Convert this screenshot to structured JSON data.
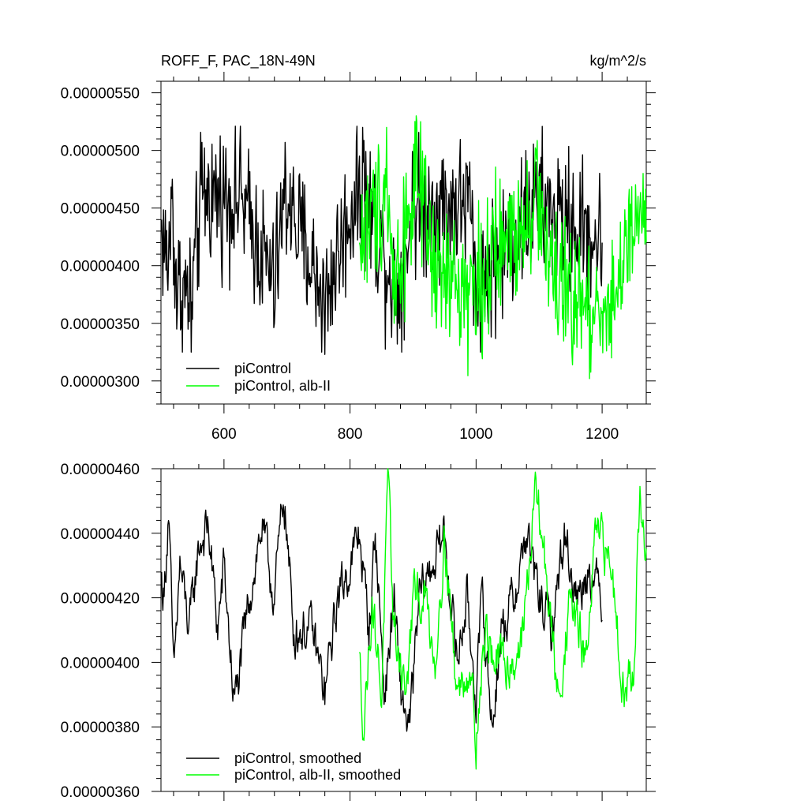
{
  "chart_data": [
    {
      "type": "line",
      "title": "ROFF_F, PAC_18N-49N",
      "units": "kg/m^2/s",
      "xlim": [
        500,
        1270
      ],
      "ylim": [
        2.8e-06,
        5.6e-06
      ],
      "xticks": [
        600,
        800,
        1000,
        1200
      ],
      "xtick_labels": [
        "600",
        "800",
        "1000",
        "1200"
      ],
      "yticks": [
        3e-06,
        3.5e-06,
        4e-06,
        4.5e-06,
        5e-06,
        5.5e-06
      ],
      "ytick_labels": [
        "0.00000300",
        "0.00000350",
        "0.00000400",
        "0.00000450",
        "0.00000500",
        "0.00000550"
      ],
      "legend_position": "bottom-left",
      "series": [
        {
          "name": "piControl",
          "color": "#000000",
          "x_start": 501,
          "x_end": 1200,
          "mean": 4.18e-06,
          "min": 3.25e-06,
          "max": 5.21e-06,
          "keypoints": [
            [
              501,
              4.4e-06
            ],
            [
              510,
              3.9e-06
            ],
            [
              518,
              4.75e-06
            ],
            [
              525,
              3.45e-06
            ],
            [
              548,
              3.25e-06
            ],
            [
              565,
              5.07e-06
            ],
            [
              625,
              5e-06
            ],
            [
              680,
              3.5e-06
            ],
            [
              697,
              5.07e-06
            ],
            [
              705,
              4.8e-06
            ],
            [
              760,
              3.23e-06
            ],
            [
              810,
              5.08e-06
            ],
            [
              820,
              5.2e-06
            ],
            [
              875,
              3.32e-06
            ],
            [
              900,
              4.8e-06
            ],
            [
              990,
              4.9e-06
            ],
            [
              1000,
              3.4e-06
            ],
            [
              1095,
              4.9e-06
            ],
            [
              1200,
              4.2e-06
            ]
          ]
        },
        {
          "name": "piControl, alb-II",
          "color": "#00ff00",
          "x_start": 815,
          "x_end": 1270,
          "mean": 4.2e-06,
          "min": 3.02e-06,
          "max": 5.3e-06,
          "keypoints": [
            [
              815,
              4.2e-06
            ],
            [
              858,
              5.2e-06
            ],
            [
              870,
              3.5e-06
            ],
            [
              905,
              5.3e-06
            ],
            [
              935,
              3.6e-06
            ],
            [
              1000,
              3.4e-06
            ],
            [
              1095,
              5e-06
            ],
            [
              1130,
              3.4e-06
            ],
            [
              1180,
              3.02e-06
            ],
            [
              1215,
              3.2e-06
            ],
            [
              1265,
              4.8e-06
            ],
            [
              1270,
              4.2e-06
            ]
          ]
        }
      ]
    },
    {
      "type": "line",
      "xlim": [
        500,
        1270
      ],
      "ylim": [
        3.6e-06,
        4.6e-06
      ],
      "xticks": [
        600,
        800,
        1000,
        1200
      ],
      "yticks": [
        3.6e-06,
        3.8e-06,
        4e-06,
        4.2e-06,
        4.4e-06,
        4.6e-06
      ],
      "ytick_labels": [
        "0.00000360",
        "0.00000380",
        "0.00000400",
        "0.00000420",
        "0.00000440",
        "0.00000460"
      ],
      "legend_position": "bottom-left",
      "series": [
        {
          "name": "piControl, smoothed",
          "color": "#000000",
          "x_start": 501,
          "x_end": 1200,
          "keypoints": [
            [
              501,
              4.25e-06
            ],
            [
              505,
              4.2e-06
            ],
            [
              512,
              4.48e-06
            ],
            [
              520,
              3.95e-06
            ],
            [
              530,
              4.3e-06
            ],
            [
              545,
              4.1e-06
            ],
            [
              560,
              4.36e-06
            ],
            [
              575,
              4.42e-06
            ],
            [
              590,
              4.1e-06
            ],
            [
              600,
              4.3e-06
            ],
            [
              615,
              3.9e-06
            ],
            [
              620,
              3.9e-06
            ],
            [
              640,
              4.2e-06
            ],
            [
              660,
              4.42e-06
            ],
            [
              680,
              4.2e-06
            ],
            [
              695,
              4.53e-06
            ],
            [
              710,
              4.1e-06
            ],
            [
              740,
              4.1e-06
            ],
            [
              760,
              3.9e-06
            ],
            [
              780,
              4.2e-06
            ],
            [
              800,
              4.3e-06
            ],
            [
              815,
              4.4e-06
            ],
            [
              830,
              4.1e-06
            ],
            [
              840,
              4.4e-06
            ],
            [
              855,
              3.9e-06
            ],
            [
              870,
              4.2e-06
            ],
            [
              880,
              3.9e-06
            ],
            [
              895,
              3.8e-06
            ],
            [
              910,
              4.2e-06
            ],
            [
              930,
              4.3e-06
            ],
            [
              950,
              4.4e-06
            ],
            [
              970,
              4e-06
            ],
            [
              985,
              4.2e-06
            ],
            [
              1000,
              3.9e-06
            ],
            [
              1010,
              4.2e-06
            ],
            [
              1025,
              3.8e-06
            ],
            [
              1040,
              4.1e-06
            ],
            [
              1060,
              4.2e-06
            ],
            [
              1080,
              4.4e-06
            ],
            [
              1100,
              4.2e-06
            ],
            [
              1120,
              4.1e-06
            ],
            [
              1140,
              4.4e-06
            ],
            [
              1160,
              4.2e-06
            ],
            [
              1180,
              4.3e-06
            ],
            [
              1200,
              4.2e-06
            ]
          ]
        },
        {
          "name": "piControl, alb-II, smoothed",
          "color": "#00ff00",
          "x_start": 815,
          "x_end": 1270,
          "keypoints": [
            [
              815,
              4e-06
            ],
            [
              822,
              3.8e-06
            ],
            [
              835,
              4.2e-06
            ],
            [
              850,
              3.9e-06
            ],
            [
              860,
              4.55e-06
            ],
            [
              870,
              4.1e-06
            ],
            [
              890,
              3.9e-06
            ],
            [
              900,
              4.2e-06
            ],
            [
              920,
              4.2e-06
            ],
            [
              935,
              4e-06
            ],
            [
              950,
              4.4e-06
            ],
            [
              970,
              3.9e-06
            ],
            [
              990,
              4e-06
            ],
            [
              1000,
              3.77e-06
            ],
            [
              1015,
              4.1e-06
            ],
            [
              1030,
              4e-06
            ],
            [
              1060,
              4e-06
            ],
            [
              1075,
              4.1e-06
            ],
            [
              1095,
              4.54e-06
            ],
            [
              1110,
              4.3e-06
            ],
            [
              1130,
              3.88e-06
            ],
            [
              1150,
              4.2e-06
            ],
            [
              1175,
              4e-06
            ],
            [
              1190,
              4.4e-06
            ],
            [
              1215,
              4.3e-06
            ],
            [
              1235,
              3.9e-06
            ],
            [
              1250,
              4e-06
            ],
            [
              1260,
              4.5e-06
            ],
            [
              1270,
              4.3e-06
            ]
          ]
        }
      ]
    }
  ]
}
